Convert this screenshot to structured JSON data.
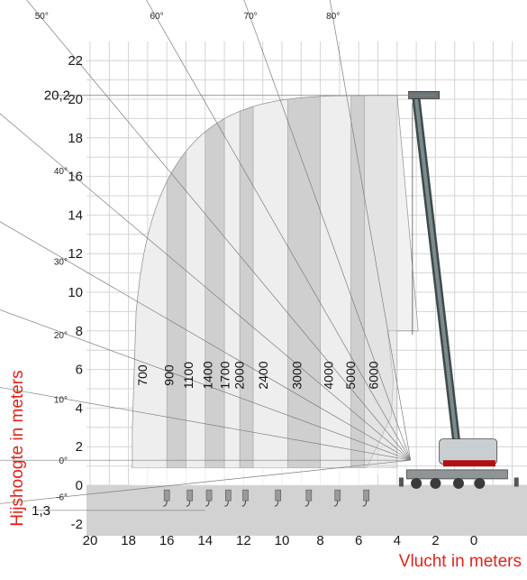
{
  "chart_data": {
    "type": "load-chart",
    "xlabel": "Vlucht in meters",
    "ylabel": "Hijshoogte in meters",
    "x_ticks": [
      "20",
      "18",
      "16",
      "14",
      "12",
      "10",
      "8",
      "6",
      "4",
      "2",
      "0"
    ],
    "y_ticks": [
      "22",
      "20",
      "18",
      "16",
      "14",
      "12",
      "10",
      "8",
      "6",
      "4",
      "2",
      "0",
      "-2"
    ],
    "xlim": [
      20.6,
      -2.3
    ],
    "ylim": [
      -2.3,
      23.5
    ],
    "max_height_label": "20,2",
    "max_height": 20.2,
    "min_height_label": "1,3",
    "min_height": -1.3,
    "angles": [
      {
        "label": "80°",
        "deg": 80
      },
      {
        "label": "70°",
        "deg": 70
      },
      {
        "label": "60°",
        "deg": 60
      },
      {
        "label": "50°",
        "deg": 50
      },
      {
        "label": "40°",
        "deg": 40
      },
      {
        "label": "30°",
        "deg": 30
      },
      {
        "label": "20°",
        "deg": 20
      },
      {
        "label": "10°",
        "deg": 10
      },
      {
        "label": "0°",
        "deg": 0
      },
      {
        "label": "-6°",
        "deg": -6
      }
    ],
    "capacity_zones": [
      {
        "label": "700",
        "outer_radius": 17.8
      },
      {
        "label": "900",
        "outer_radius": 16.0
      },
      {
        "label": "1100",
        "outer_radius": 15.0
      },
      {
        "label": "1400",
        "outer_radius": 14.0
      },
      {
        "label": "1700",
        "outer_radius": 13.0
      },
      {
        "label": "2000",
        "outer_radius": 12.2
      },
      {
        "label": "2400",
        "outer_radius": 11.5
      },
      {
        "label": "3000",
        "outer_radius": 9.7
      },
      {
        "label": "4000",
        "outer_radius": 8.0
      },
      {
        "label": "5000",
        "outer_radius": 6.4
      },
      {
        "label": "6000",
        "outer_radius": 5.7
      }
    ],
    "grid": true
  }
}
